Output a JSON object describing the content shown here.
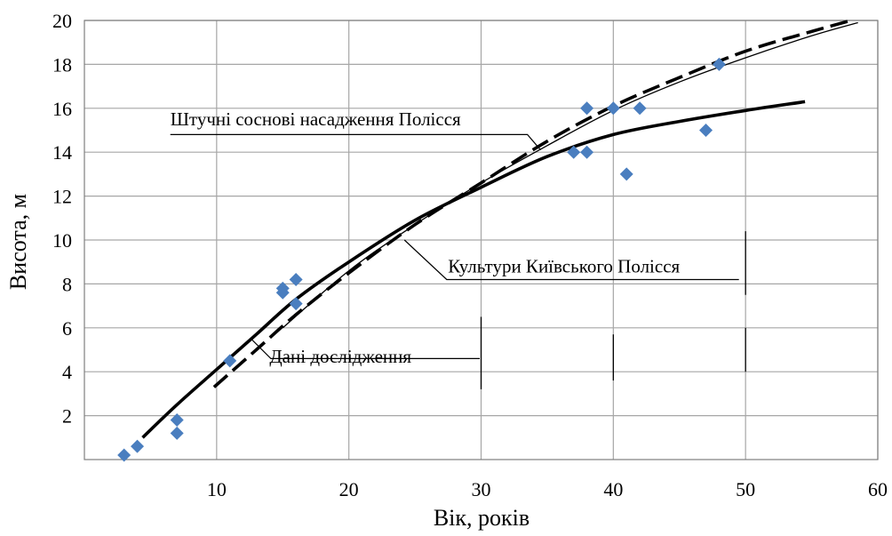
{
  "chart_data": {
    "type": "scatter",
    "title": "",
    "xlabel": "Вік, років",
    "ylabel": "Висота, м",
    "xlim": [
      0,
      60
    ],
    "ylim": [
      0,
      20
    ],
    "x_ticks": [
      10,
      20,
      30,
      40,
      50,
      60
    ],
    "y_ticks": [
      2,
      4,
      6,
      8,
      10,
      12,
      14,
      16,
      18,
      20
    ],
    "grid": true,
    "marker_color": "#4a7ebf",
    "points": [
      {
        "x": 3,
        "y": 0.2
      },
      {
        "x": 4,
        "y": 0.6
      },
      {
        "x": 7,
        "y": 1.2
      },
      {
        "x": 7,
        "y": 1.8
      },
      {
        "x": 11,
        "y": 4.5
      },
      {
        "x": 15,
        "y": 7.6
      },
      {
        "x": 15,
        "y": 7.8
      },
      {
        "x": 16,
        "y": 7.1
      },
      {
        "x": 16,
        "y": 8.2
      },
      {
        "x": 37,
        "y": 14.0
      },
      {
        "x": 38,
        "y": 14.0
      },
      {
        "x": 38,
        "y": 16.0
      },
      {
        "x": 40,
        "y": 16.0
      },
      {
        "x": 41,
        "y": 13.0
      },
      {
        "x": 42,
        "y": 16.0
      },
      {
        "x": 47,
        "y": 15.0
      },
      {
        "x": 48,
        "y": 18.0
      }
    ],
    "curves": [
      {
        "style": "thick-solid",
        "x": [
          4.4,
          7,
          10,
          13,
          16,
          20,
          25,
          30,
          35,
          40,
          45,
          50,
          54.5
        ],
        "y": [
          1.0,
          2.5,
          4.1,
          5.7,
          7.3,
          9.0,
          10.9,
          12.4,
          13.8,
          14.8,
          15.4,
          15.9,
          16.3
        ]
      },
      {
        "style": "thick-dashed",
        "x": [
          9.8,
          13,
          16,
          20,
          25,
          30,
          35,
          40,
          45,
          50,
          55,
          58
        ],
        "y": [
          3.3,
          5.0,
          6.6,
          8.5,
          10.7,
          12.6,
          14.5,
          16.1,
          17.4,
          18.6,
          19.5,
          20.0
        ]
      },
      {
        "style": "thin-solid",
        "x": [
          15,
          20,
          25,
          30,
          35,
          40,
          45,
          50,
          55,
          58.5
        ],
        "y": [
          6.0,
          8.6,
          10.7,
          12.6,
          14.3,
          15.9,
          17.2,
          18.3,
          19.3,
          19.9
        ]
      }
    ],
    "annotations": [
      {
        "text": "Штучні соснові насадження Полісся",
        "x": 6.5,
        "y": 15.5
      },
      {
        "text": "Культури Київського Полісся",
        "x": 27.5,
        "y": 8.8
      },
      {
        "text": "Дані дослідження",
        "x": 14.0,
        "y": 4.7
      }
    ]
  }
}
